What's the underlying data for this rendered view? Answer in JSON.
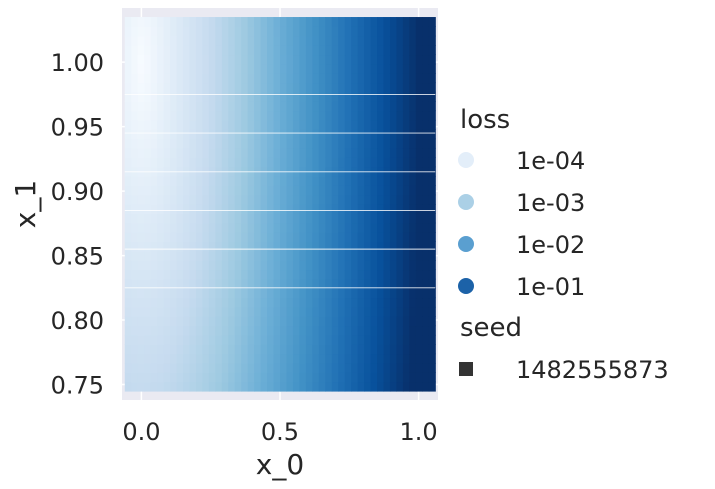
{
  "chart_data": {
    "type": "heatmap",
    "title": "",
    "xlabel": "x_0",
    "ylabel": "x_1",
    "xlim": [
      -0.07,
      1.07
    ],
    "ylim": [
      0.738,
      1.042
    ],
    "x_ticks": [
      0.0,
      0.5,
      1.0
    ],
    "x_tick_labels": [
      "0.0",
      "0.5",
      "1.0"
    ],
    "y_ticks": [
      0.75,
      0.8,
      0.85,
      0.9,
      0.95,
      1.0
    ],
    "y_tick_labels": [
      "0.75",
      "0.80",
      "0.85",
      "0.90",
      "0.95",
      "1.00"
    ],
    "grid": true,
    "colormap": "Blues",
    "color_scale": "log",
    "data_extent": {
      "x": [
        -0.06,
        1.06
      ],
      "y": [
        0.745,
        1.035
      ]
    },
    "loss_function": "10^(-4.5 + 4.5*sqrt(min(1, x_0^2 + (1 - x_1)^2)))",
    "legend": {
      "placement": "right",
      "hue_title": "loss",
      "hue_entries": [
        {
          "label": "1e-04",
          "color": "#e3eef9"
        },
        {
          "label": "1e-03",
          "color": "#abd0e6"
        },
        {
          "label": "1e-02",
          "color": "#5a9fd0"
        },
        {
          "label": "1e-01",
          "color": "#1c62a8"
        }
      ],
      "style_title": "seed",
      "style_entries": [
        {
          "label": "1482555873",
          "marker": "square",
          "color": "#333333"
        }
      ]
    }
  }
}
